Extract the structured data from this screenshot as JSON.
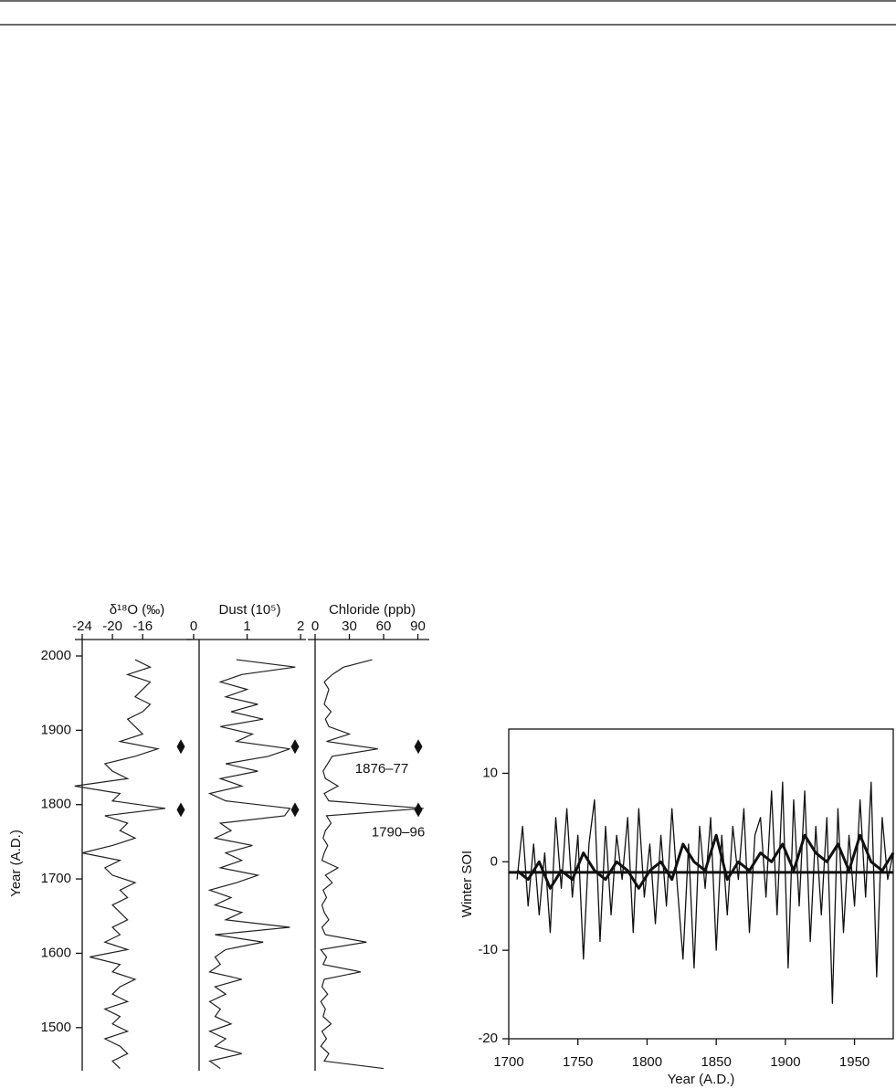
{
  "chart_data": [
    {
      "type": "line",
      "orientation": "vertical",
      "xlabel": "δ¹⁸O (‰)",
      "ylabel": "Year (A.D.)",
      "xlim": [
        -24,
        -9.5
      ],
      "xticks": [
        -24,
        -20,
        -16
      ],
      "ylim": [
        1442,
        2000
      ],
      "yticks": [
        1500,
        1600,
        1700,
        1800,
        1900,
        2000
      ],
      "color": "#222",
      "event_years": [
        1878,
        1793
      ],
      "years": [
        1445,
        1455,
        1465,
        1475,
        1485,
        1495,
        1505,
        1515,
        1525,
        1535,
        1545,
        1555,
        1565,
        1575,
        1585,
        1595,
        1605,
        1615,
        1625,
        1635,
        1645,
        1655,
        1665,
        1675,
        1685,
        1695,
        1705,
        1715,
        1725,
        1735,
        1745,
        1755,
        1765,
        1775,
        1785,
        1795,
        1805,
        1815,
        1825,
        1835,
        1845,
        1855,
        1865,
        1875,
        1885,
        1895,
        1905,
        1915,
        1925,
        1935,
        1945,
        1955,
        1965,
        1975,
        1985,
        1995
      ],
      "values": [
        -19,
        -20,
        -18,
        -19,
        -21,
        -18,
        -20,
        -19,
        -21,
        -18,
        -20,
        -19,
        -17,
        -20,
        -19,
        -23,
        -18,
        -21,
        -19,
        -20,
        -18,
        -19,
        -20,
        -18,
        -19,
        -17,
        -20,
        -21,
        -19,
        -24,
        -20,
        -17,
        -19,
        -18,
        -21,
        -13,
        -20,
        -19,
        -25,
        -18,
        -20,
        -21,
        -17,
        -14,
        -19,
        -16,
        -17,
        -18,
        -16,
        -15,
        -17,
        -16,
        -15,
        -18,
        -15,
        -17
      ]
    },
    {
      "type": "line",
      "orientation": "vertical",
      "xlabel": "Dust (10⁵)",
      "xlim": [
        0,
        2.1
      ],
      "xticks": [
        0,
        1,
        2
      ],
      "ylim": [
        1442,
        2000
      ],
      "color": "#222",
      "event_years": [
        1878,
        1793
      ],
      "years": [
        1445,
        1455,
        1465,
        1475,
        1485,
        1495,
        1505,
        1515,
        1525,
        1535,
        1545,
        1555,
        1565,
        1575,
        1585,
        1595,
        1605,
        1615,
        1625,
        1635,
        1645,
        1655,
        1665,
        1675,
        1685,
        1695,
        1705,
        1715,
        1725,
        1735,
        1745,
        1755,
        1765,
        1775,
        1785,
        1795,
        1805,
        1815,
        1825,
        1835,
        1845,
        1855,
        1865,
        1875,
        1885,
        1895,
        1905,
        1915,
        1925,
        1935,
        1945,
        1955,
        1965,
        1975,
        1985,
        1995
      ],
      "values": [
        0.5,
        0.3,
        0.9,
        0.4,
        0.6,
        0.3,
        0.7,
        0.4,
        0.5,
        0.3,
        0.6,
        0.4,
        0.9,
        0.3,
        0.5,
        0.4,
        0.6,
        1.3,
        0.4,
        1.8,
        0.6,
        0.9,
        0.4,
        0.7,
        0.3,
        0.8,
        1.2,
        0.5,
        0.9,
        0.6,
        1.1,
        0.4,
        0.7,
        0.5,
        1.7,
        1.8,
        0.6,
        0.3,
        0.9,
        0.5,
        1.2,
        0.6,
        1.4,
        1.8,
        0.8,
        1.1,
        0.5,
        1.3,
        0.7,
        1.2,
        0.6,
        1.0,
        0.5,
        0.9,
        1.9,
        0.8
      ]
    },
    {
      "type": "line",
      "orientation": "vertical",
      "xlabel": "Chloride (ppb)",
      "xlim": [
        0,
        100
      ],
      "xticks": [
        0,
        30,
        60,
        90
      ],
      "ylim": [
        1442,
        2000
      ],
      "color": "#222",
      "event_years": [
        1878,
        1793
      ],
      "event_labels": [
        "1876–77",
        "1790–96"
      ],
      "years": [
        1445,
        1455,
        1465,
        1475,
        1485,
        1495,
        1505,
        1515,
        1525,
        1535,
        1545,
        1555,
        1565,
        1575,
        1585,
        1595,
        1605,
        1615,
        1625,
        1635,
        1645,
        1655,
        1665,
        1675,
        1685,
        1695,
        1705,
        1715,
        1725,
        1735,
        1745,
        1755,
        1765,
        1775,
        1785,
        1795,
        1805,
        1815,
        1825,
        1835,
        1845,
        1855,
        1865,
        1875,
        1885,
        1895,
        1905,
        1915,
        1925,
        1935,
        1945,
        1955,
        1965,
        1975,
        1985,
        1995
      ],
      "values": [
        60,
        8,
        12,
        5,
        10,
        6,
        14,
        7,
        9,
        5,
        11,
        6,
        8,
        40,
        7,
        10,
        5,
        45,
        9,
        6,
        12,
        8,
        6,
        10,
        7,
        15,
        9,
        20,
        6,
        8,
        11,
        7,
        9,
        14,
        10,
        95,
        12,
        8,
        20,
        9,
        7,
        11,
        15,
        55,
        10,
        30,
        12,
        9,
        14,
        8,
        10,
        12,
        8,
        15,
        25,
        50
      ]
    },
    {
      "type": "line",
      "xlabel": "Year (A.D.)",
      "ylabel": "Winter SOI",
      "xlim": [
        1700,
        1978
      ],
      "xticks": [
        1700,
        1750,
        1800,
        1850,
        1900,
        1950
      ],
      "ylim": [
        -20,
        15
      ],
      "yticks": [
        -20,
        -10,
        0,
        10
      ],
      "reference": -1.2,
      "series": [
        {
          "color": "#111",
          "width": 1.3,
          "x": [
            1706,
            1710,
            1714,
            1718,
            1722,
            1726,
            1730,
            1734,
            1738,
            1742,
            1746,
            1750,
            1754,
            1758,
            1762,
            1766,
            1770,
            1774,
            1778,
            1782,
            1786,
            1790,
            1794,
            1798,
            1802,
            1806,
            1810,
            1814,
            1818,
            1822,
            1826,
            1830,
            1834,
            1838,
            1842,
            1846,
            1850,
            1854,
            1858,
            1862,
            1866,
            1870,
            1874,
            1878,
            1882,
            1886,
            1890,
            1894,
            1898,
            1902,
            1906,
            1910,
            1914,
            1918,
            1922,
            1926,
            1930,
            1934,
            1938,
            1942,
            1946,
            1950,
            1954,
            1958,
            1962,
            1966,
            1970,
            1974,
            1978
          ],
          "values": [
            -2,
            4,
            -5,
            2,
            -6,
            1,
            -8,
            5,
            -3,
            6,
            -4,
            3,
            -11,
            2,
            7,
            -9,
            4,
            -6,
            3,
            -2,
            5,
            -8,
            6,
            -4,
            2,
            -7,
            3,
            -5,
            6,
            -3,
            -11,
            2,
            -12,
            4,
            -3,
            5,
            -10,
            3,
            -6,
            4,
            -2,
            6,
            -8,
            3,
            5,
            -4,
            8,
            -6,
            9,
            -12,
            7,
            -5,
            8,
            -9,
            4,
            -6,
            5,
            -16,
            6,
            -8,
            3,
            -5,
            7,
            -4,
            9,
            -13,
            5,
            -2,
            1
          ]
        },
        {
          "color": "#111",
          "width": 3,
          "x": [
            1706,
            1714,
            1722,
            1730,
            1738,
            1746,
            1754,
            1762,
            1770,
            1778,
            1786,
            1794,
            1802,
            1810,
            1818,
            1826,
            1834,
            1842,
            1850,
            1858,
            1866,
            1874,
            1882,
            1890,
            1898,
            1906,
            1914,
            1922,
            1930,
            1938,
            1946,
            1954,
            1962,
            1970,
            1978
          ],
          "values": [
            -1,
            -2,
            0,
            -3,
            -1,
            -2,
            1,
            -1,
            -2,
            0,
            -1,
            -3,
            -1,
            0,
            -2,
            2,
            0,
            -1,
            3,
            -2,
            0,
            -1,
            1,
            0,
            2,
            -1,
            3,
            1,
            0,
            2,
            -1,
            3,
            0,
            -1,
            1
          ]
        }
      ]
    }
  ]
}
